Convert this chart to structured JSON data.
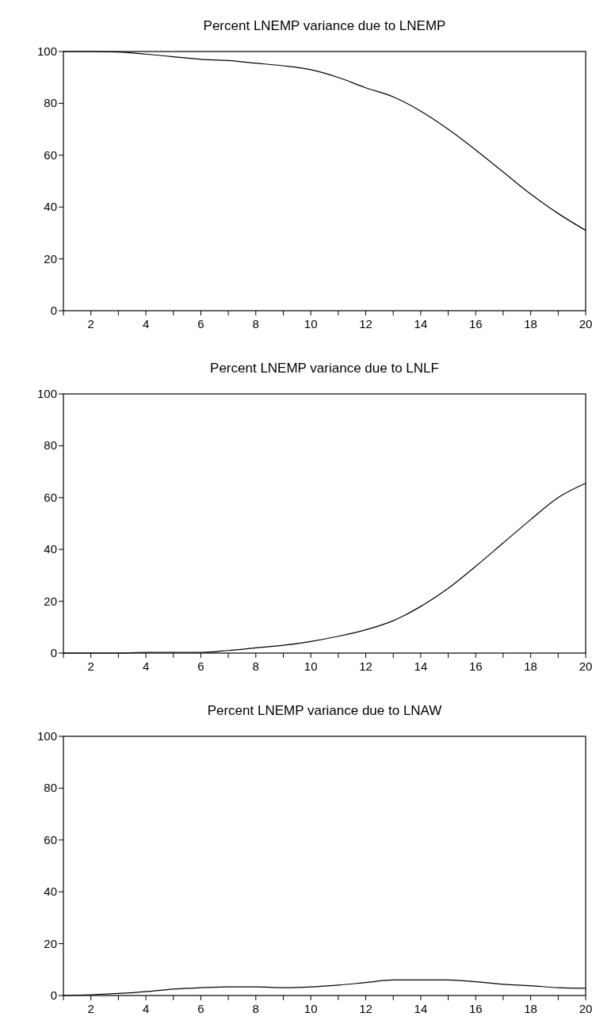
{
  "chart_data": [
    {
      "type": "line",
      "title": "Percent LNEMP variance due to LNEMP",
      "x": [
        1,
        2,
        3,
        4,
        5,
        6,
        7,
        8,
        9,
        10,
        11,
        12,
        13,
        14,
        15,
        16,
        17,
        18,
        19,
        20
      ],
      "series": [
        {
          "color": "#000000",
          "values": [
            100,
            100,
            99.8,
            99,
            98,
            97,
            96.5,
            95.5,
            94.5,
            93,
            90,
            86,
            82.5,
            77,
            70,
            62,
            53.5,
            45,
            37.5,
            31
          ]
        }
      ],
      "xlim": [
        1,
        20
      ],
      "xticks": [
        {
          "value": 1,
          "label": null
        },
        2,
        {
          "value": 3,
          "label": null
        },
        4,
        {
          "value": 5,
          "label": null
        },
        6,
        {
          "value": 7,
          "label": null
        },
        8,
        {
          "value": 9,
          "label": null
        },
        10,
        {
          "value": 11,
          "label": null
        },
        12,
        {
          "value": 13,
          "label": null
        },
        14,
        {
          "value": 15,
          "label": null
        },
        16,
        {
          "value": 17,
          "label": null
        },
        18,
        {
          "value": 19,
          "label": null
        },
        20
      ],
      "ylim": [
        0,
        100
      ],
      "yticks": [
        0,
        20,
        40,
        60,
        80,
        100
      ]
    },
    {
      "type": "line",
      "title": "Percent LNEMP variance due to LNLF",
      "x": [
        1,
        2,
        3,
        4,
        5,
        6,
        7,
        8,
        9,
        10,
        11,
        12,
        13,
        14,
        15,
        16,
        17,
        18,
        19,
        20
      ],
      "series": [
        {
          "color": "#000000",
          "values": [
            0,
            0,
            0,
            0.3,
            0.3,
            0.3,
            1,
            2,
            3,
            4.5,
            6.5,
            9,
            12.5,
            18,
            25,
            33.5,
            42.5,
            51.5,
            60,
            65.5
          ]
        }
      ],
      "xlim": [
        1,
        20
      ],
      "xticks": [
        {
          "value": 1,
          "label": null
        },
        2,
        {
          "value": 3,
          "label": null
        },
        4,
        {
          "value": 5,
          "label": null
        },
        6,
        {
          "value": 7,
          "label": null
        },
        8,
        {
          "value": 9,
          "label": null
        },
        10,
        {
          "value": 11,
          "label": null
        },
        12,
        {
          "value": 13,
          "label": null
        },
        14,
        {
          "value": 15,
          "label": null
        },
        16,
        {
          "value": 17,
          "label": null
        },
        18,
        {
          "value": 19,
          "label": null
        },
        20
      ],
      "ylim": [
        0,
        100
      ],
      "yticks": [
        0,
        20,
        40,
        60,
        80,
        100
      ]
    },
    {
      "type": "line",
      "title": "Percent LNEMP variance due to LNAW",
      "x": [
        1,
        2,
        3,
        4,
        5,
        6,
        7,
        8,
        9,
        10,
        11,
        12,
        13,
        14,
        15,
        16,
        17,
        18,
        19,
        20
      ],
      "series": [
        {
          "color": "#000000",
          "values": [
            0,
            0.3,
            0.8,
            1.5,
            2.5,
            3,
            3.3,
            3.3,
            3,
            3.3,
            4,
            5,
            6,
            6,
            6,
            5.3,
            4.3,
            3.8,
            3,
            2.8
          ]
        }
      ],
      "xlim": [
        1,
        20
      ],
      "xticks": [
        {
          "value": 1,
          "label": null
        },
        2,
        {
          "value": 3,
          "label": null
        },
        4,
        {
          "value": 5,
          "label": null
        },
        6,
        {
          "value": 7,
          "label": null
        },
        8,
        {
          "value": 9,
          "label": null
        },
        10,
        {
          "value": 11,
          "label": null
        },
        12,
        {
          "value": 13,
          "label": null
        },
        14,
        {
          "value": 15,
          "label": null
        },
        16,
        {
          "value": 17,
          "label": null
        },
        18,
        {
          "value": 19,
          "label": null
        },
        20
      ],
      "ylim": [
        0,
        100
      ],
      "yticks": [
        0,
        20,
        40,
        60,
        80,
        100
      ]
    }
  ]
}
